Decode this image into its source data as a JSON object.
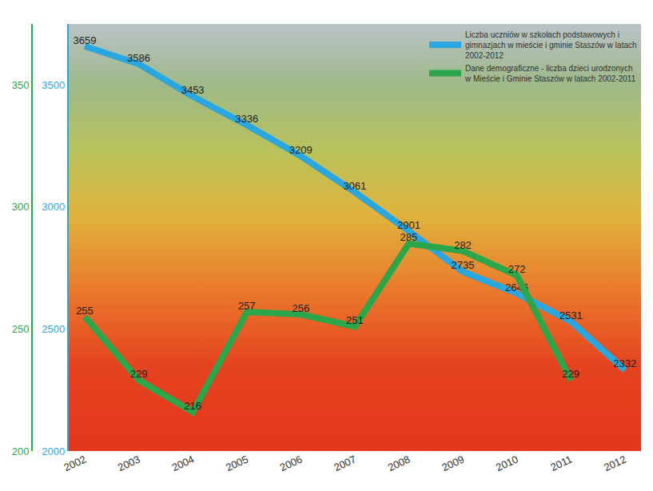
{
  "chart_data": {
    "type": "line",
    "categories": [
      "2002",
      "2003",
      "2004",
      "2005",
      "2006",
      "2007",
      "2008",
      "2009",
      "2010",
      "2011",
      "2012"
    ],
    "series": [
      {
        "name": "Liczba uczniów w szkołach podstawowych i gimnazjach w mieście i gminie Staszów w latach 2002-2012",
        "color": "#2aa7e1",
        "values": [
          3659,
          3586,
          3453,
          3336,
          3209,
          3061,
          2901,
          2735,
          2646,
          2531,
          2332
        ]
      },
      {
        "name": "Dane demograficzne - liczba dzieci urodzonych w Mieście i Gminie Staszów w latach 2002-2011",
        "color": "#2ba64a",
        "axis": "y2",
        "values": [
          255,
          229,
          216,
          257,
          256,
          251,
          285,
          282,
          272,
          229,
          null
        ]
      }
    ],
    "ylim": [
      2000,
      3750
    ],
    "yticks": [
      2000,
      2500,
      3000,
      3500
    ],
    "y2lim": [
      200,
      375
    ],
    "y2ticks": [
      200,
      250,
      300,
      350
    ],
    "data_labels": true,
    "legend": "top right",
    "grid": false
  }
}
